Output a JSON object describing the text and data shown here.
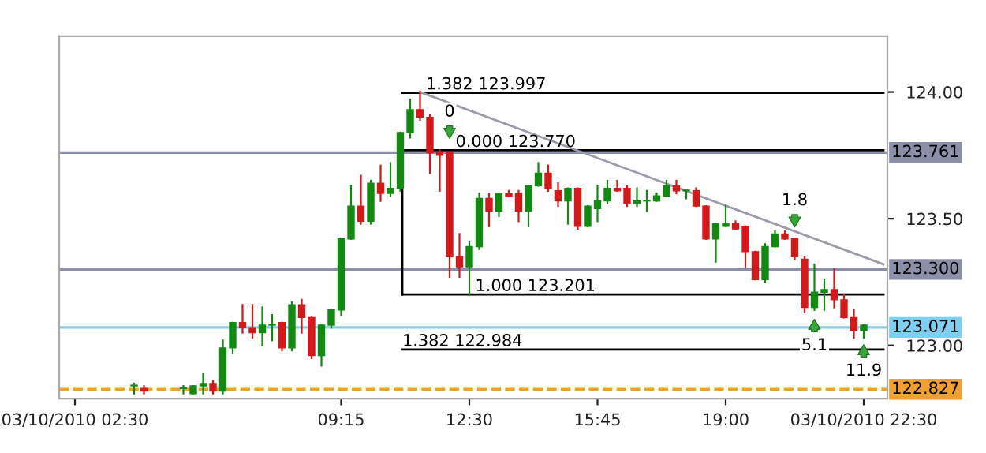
{
  "chart_data": {
    "type": "candlestick",
    "x": [
      4.0,
      4.25,
      5.25,
      5.5,
      5.75,
      6.0,
      6.25,
      6.5,
      6.75,
      7.0,
      7.25,
      7.5,
      7.75,
      8.0,
      8.25,
      8.5,
      8.75,
      9.0,
      9.25,
      9.5,
      9.75,
      10.0,
      10.25,
      10.5,
      10.75,
      11.0,
      11.25,
      11.5,
      11.75,
      12.0,
      12.25,
      12.5,
      12.75,
      13.0,
      13.25,
      13.5,
      13.75,
      14.0,
      14.25,
      14.5,
      14.75,
      15.0,
      15.25,
      15.5,
      15.75,
      16.0,
      16.25,
      16.5,
      16.75,
      17.0,
      17.25,
      17.5,
      17.75,
      18.0,
      18.25,
      18.5,
      18.75,
      19.0,
      19.25,
      19.5,
      19.75,
      20.0,
      20.25,
      20.5,
      20.75,
      21.0,
      21.25,
      21.5,
      21.75,
      22.0,
      22.25,
      22.5
    ],
    "ohlc": [
      [
        122.84,
        122.85,
        122.81,
        122.84
      ],
      [
        122.83,
        122.84,
        122.81,
        122.82
      ],
      [
        122.83,
        122.84,
        122.81,
        122.83
      ],
      [
        122.81,
        122.84,
        122.81,
        122.84
      ],
      [
        122.84,
        122.89,
        122.81,
        122.85
      ],
      [
        122.85,
        122.86,
        122.81,
        122.82
      ],
      [
        122.82,
        123.02,
        122.81,
        122.99
      ],
      [
        122.99,
        123.09,
        122.97,
        123.09
      ],
      [
        123.09,
        123.16,
        123.05,
        123.07
      ],
      [
        123.07,
        123.16,
        123.03,
        123.05
      ],
      [
        123.05,
        123.15,
        123.0,
        123.08
      ],
      [
        123.08,
        123.12,
        123.02,
        123.08
      ],
      [
        123.09,
        123.09,
        122.98,
        122.99
      ],
      [
        122.99,
        123.17,
        122.98,
        123.16
      ],
      [
        123.16,
        123.18,
        123.05,
        123.11
      ],
      [
        123.11,
        123.11,
        122.95,
        122.96
      ],
      [
        122.96,
        123.08,
        122.92,
        123.08
      ],
      [
        123.08,
        123.14,
        123.07,
        123.14
      ],
      [
        123.14,
        123.42,
        123.12,
        123.42
      ],
      [
        123.42,
        123.63,
        123.42,
        123.55
      ],
      [
        123.55,
        123.67,
        123.48,
        123.49
      ],
      [
        123.49,
        123.65,
        123.48,
        123.64
      ],
      [
        123.64,
        123.71,
        123.57,
        123.6
      ],
      [
        123.6,
        123.72,
        123.59,
        123.62
      ],
      [
        123.62,
        123.84,
        123.61,
        123.84
      ],
      [
        123.84,
        123.97,
        123.82,
        123.93
      ],
      [
        123.93,
        124.0,
        123.89,
        123.9
      ],
      [
        123.9,
        123.91,
        123.68,
        123.76
      ],
      [
        123.76,
        123.77,
        123.61,
        123.75
      ],
      [
        123.76,
        123.76,
        123.27,
        123.35
      ],
      [
        123.35,
        123.44,
        123.27,
        123.31
      ],
      [
        123.31,
        123.41,
        123.2,
        123.39
      ],
      [
        123.39,
        123.6,
        123.38,
        123.58
      ],
      [
        123.58,
        123.6,
        123.47,
        123.53
      ],
      [
        123.53,
        123.6,
        123.51,
        123.6
      ],
      [
        123.6,
        123.61,
        123.59,
        123.59
      ],
      [
        123.6,
        123.61,
        123.49,
        123.53
      ],
      [
        123.53,
        123.63,
        123.47,
        123.63
      ],
      [
        123.63,
        123.72,
        123.63,
        123.68
      ],
      [
        123.68,
        123.71,
        123.61,
        123.62
      ],
      [
        123.61,
        123.64,
        123.55,
        123.57
      ],
      [
        123.57,
        123.62,
        123.48,
        123.62
      ],
      [
        123.62,
        123.62,
        123.46,
        123.47
      ],
      [
        123.47,
        123.55,
        123.47,
        123.55
      ],
      [
        123.54,
        123.63,
        123.49,
        123.57
      ],
      [
        123.57,
        123.65,
        123.56,
        123.62
      ],
      [
        123.62,
        123.65,
        123.61,
        123.61
      ],
      [
        123.62,
        123.63,
        123.55,
        123.56
      ],
      [
        123.56,
        123.62,
        123.55,
        123.57
      ],
      [
        123.57,
        123.61,
        123.53,
        123.57
      ],
      [
        123.57,
        123.6,
        123.57,
        123.59
      ],
      [
        123.59,
        123.65,
        123.59,
        123.63
      ],
      [
        123.63,
        123.65,
        123.6,
        123.61
      ],
      [
        123.61,
        123.61,
        123.58,
        123.61
      ],
      [
        123.61,
        123.62,
        123.55,
        123.55
      ],
      [
        123.55,
        123.55,
        123.42,
        123.42
      ],
      [
        123.42,
        123.48,
        123.33,
        123.48
      ],
      [
        123.47,
        123.55,
        123.47,
        123.48
      ],
      [
        123.48,
        123.49,
        123.46,
        123.46
      ],
      [
        123.47,
        123.47,
        123.31,
        123.37
      ],
      [
        123.37,
        123.37,
        123.26,
        123.26
      ],
      [
        123.26,
        123.4,
        123.25,
        123.39
      ],
      [
        123.39,
        123.45,
        123.39,
        123.44
      ],
      [
        123.44,
        123.45,
        123.42,
        123.42
      ],
      [
        123.42,
        123.42,
        123.34,
        123.35
      ],
      [
        123.34,
        123.35,
        123.13,
        123.15
      ],
      [
        123.15,
        123.32,
        123.14,
        123.21
      ],
      [
        123.21,
        123.26,
        123.14,
        123.22
      ],
      [
        123.22,
        123.3,
        123.15,
        123.18
      ],
      [
        123.18,
        123.2,
        123.11,
        123.11
      ],
      [
        123.11,
        123.14,
        123.03,
        123.06
      ],
      [
        123.06,
        123.08,
        123.03,
        123.08
      ]
    ],
    "series": [
      {
        "type": "line",
        "name": "1.382 123.997",
        "color": "#000000",
        "x": [
          10.8,
          23.0
        ],
        "values": [
          123.997,
          123.997
        ]
      },
      {
        "type": "line",
        "name": "0.000 123.770",
        "color": "#000000",
        "x": [
          10.8,
          23.0
        ],
        "values": [
          123.77,
          123.77
        ]
      },
      {
        "type": "line",
        "name": "1.000 123.201",
        "color": "#000000",
        "x": [
          10.8,
          23.0
        ],
        "values": [
          123.201,
          123.201
        ]
      },
      {
        "type": "line",
        "name": "1.382 122.984",
        "color": "#000000",
        "x": [
          10.8,
          23.0
        ],
        "values": [
          122.984,
          122.984
        ]
      },
      {
        "type": "line",
        "color": "#000000",
        "x": [
          10.8,
          10.8
        ],
        "values": [
          123.77,
          123.201
        ]
      },
      {
        "type": "line",
        "color": "#9a9aa8",
        "x": [
          11.25,
          23.0
        ],
        "values": [
          124.0,
          123.32
        ]
      }
    ],
    "ref_lines": [
      {
        "axis": "y",
        "value": 123.761,
        "label": "123.761",
        "color": "#8c8fa8"
      },
      {
        "axis": "y",
        "value": 123.3,
        "label": "123.300",
        "color": "#8c8fa8"
      },
      {
        "axis": "y",
        "value": 123.071,
        "label": "123.071",
        "color": "#7fd0f0"
      },
      {
        "axis": "y",
        "value": 122.827,
        "label": "122.827",
        "color": "#f0a030",
        "line_style": "dashed"
      }
    ],
    "annotations": [
      {
        "text": "0",
        "x": 12.0,
        "y": 123.8
      },
      {
        "text": "1.8",
        "x": 20.75,
        "y": 123.45
      },
      {
        "text": "5.1",
        "x": 21.25,
        "y": 123.12
      },
      {
        "text": "11.9",
        "x": 22.5,
        "y": 123.02
      }
    ],
    "xlim": [
      2.1,
      23.1
    ],
    "xticks": [
      {
        "value": 2.5,
        "label": "03/10/2010 02:30"
      },
      {
        "value": 9.25,
        "label": "09:15"
      },
      {
        "value": 12.5,
        "label": "12:30"
      },
      {
        "value": 15.75,
        "label": "15:45"
      },
      {
        "value": 19.0,
        "label": "19:00"
      },
      {
        "value": 22.5,
        "label": "03/10/2010 22:30"
      }
    ],
    "ylim": [
      122.79,
      124.22
    ],
    "yticks": [
      {
        "value": 123.0,
        "label": "123.00"
      },
      {
        "value": 123.5,
        "label": "123.50"
      },
      {
        "value": 124.0,
        "label": "124.00"
      }
    ],
    "grid": false
  }
}
